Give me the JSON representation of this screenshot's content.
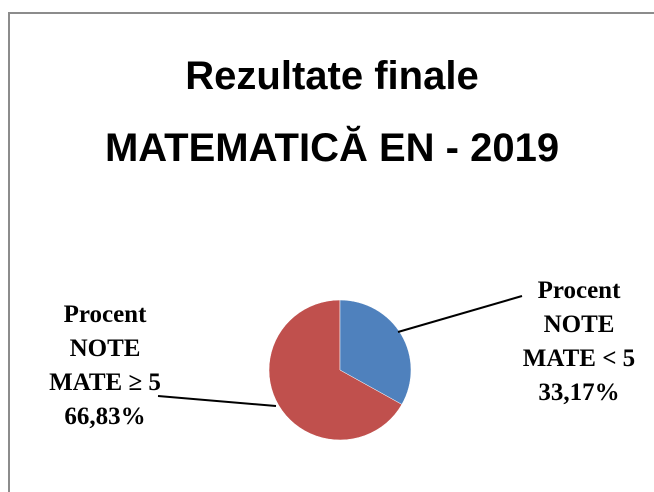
{
  "chart_data": {
    "type": "pie",
    "title": "Rezultate finale MATEMATICĂ EN - 2019",
    "categories": [
      "Procent NOTE MATE < 5",
      "Procent NOTE MATE ≥ 5"
    ],
    "values": [
      33.17,
      66.83
    ],
    "value_labels": [
      "33,17%",
      "66,83%"
    ],
    "colors": [
      "#4f81bd",
      "#c0504d"
    ]
  }
}
